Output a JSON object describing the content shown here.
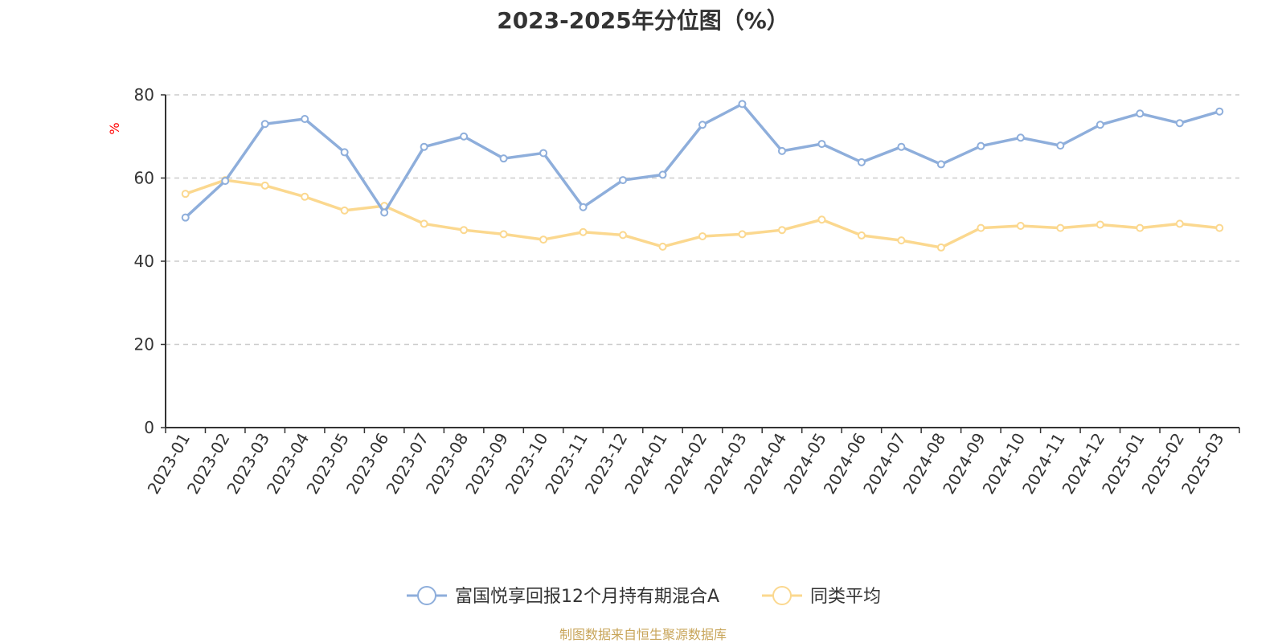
{
  "chart_data": {
    "type": "line",
    "title": "2023-2025年分位图（%）",
    "ylabel": "%",
    "xlabel": "",
    "ylim": [
      0,
      80
    ],
    "yticks": [
      0,
      20,
      40,
      60,
      80
    ],
    "grid": true,
    "legend_position": "bottom",
    "categories": [
      "2023-01",
      "2023-02",
      "2023-03",
      "2023-04",
      "2023-05",
      "2023-06",
      "2023-07",
      "2023-08",
      "2023-09",
      "2023-10",
      "2023-11",
      "2023-12",
      "2024-01",
      "2024-02",
      "2024-03",
      "2024-04",
      "2024-05",
      "2024-06",
      "2024-07",
      "2024-08",
      "2024-09",
      "2024-10",
      "2024-11",
      "2024-12",
      "2025-01",
      "2025-02",
      "2025-03"
    ],
    "series": [
      {
        "name": "富国悦享回报12个月持有期混合A",
        "color": "#8eaedb",
        "values": [
          50.5,
          59.3,
          73.0,
          74.2,
          66.2,
          51.7,
          67.5,
          70.0,
          64.7,
          66.0,
          53.0,
          59.5,
          60.8,
          72.8,
          77.8,
          66.5,
          68.2,
          63.8,
          67.5,
          63.3,
          67.7,
          69.7,
          67.8,
          72.8,
          75.5,
          73.2,
          76.0
        ]
      },
      {
        "name": "同类平均",
        "color": "#fbd88f",
        "values": [
          56.2,
          59.5,
          58.2,
          55.5,
          52.2,
          53.3,
          49.0,
          47.5,
          46.5,
          45.2,
          47.0,
          46.3,
          43.5,
          46.0,
          46.5,
          47.5,
          50.0,
          46.2,
          45.0,
          43.3,
          48.0,
          48.5,
          48.0,
          48.8,
          48.0,
          49.0,
          48.0
        ]
      }
    ]
  },
  "colors": {
    "axis": "#333333",
    "grid": "#cccccc",
    "ylabel": "#ff0000",
    "footer": "#c8a55a"
  },
  "footer_text": "制图数据来自恒生聚源数据库"
}
